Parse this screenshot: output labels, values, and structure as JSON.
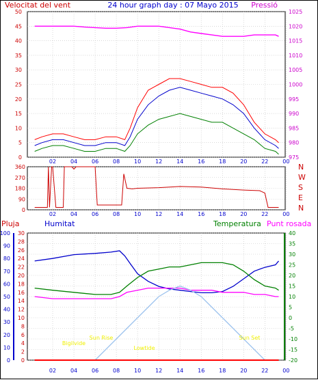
{
  "header": {
    "left": "Velocitat del vent",
    "center": "24 hour graph day : 07 Mayo 2015",
    "right": "Pressió"
  },
  "colors": {
    "red": "#ff0000",
    "dark_red": "#cc0000",
    "blue": "#0000cc",
    "green": "#008000",
    "magenta": "#ff00ff",
    "purple": "#990099",
    "light_blue": "#9dc3ee",
    "yellow": "#f0f000",
    "grid": "#c0c0c0"
  },
  "chart_data": [
    {
      "type": "line",
      "panel": "wind_speed_pressure",
      "title": "24 hour graph day : 07 Mayo 2015",
      "ylabel_left": "Velocitat del vent",
      "ylabel_right": "Pressió",
      "xticks": [
        "02",
        "04",
        "06",
        "08",
        "10",
        "12",
        "14",
        "16",
        "18",
        "20",
        "22",
        "00"
      ],
      "yticks_left": [
        "0",
        "5",
        "10",
        "15",
        "20",
        "25",
        "30",
        "35",
        "40",
        "45",
        "50"
      ],
      "yticks_right": [
        "975",
        "980",
        "985",
        "990",
        "995",
        "1000",
        "1005",
        "1010",
        "1015",
        "1020",
        "1025"
      ],
      "ylim_left": [
        0,
        50
      ],
      "ylim_right": [
        975,
        1025
      ],
      "grid": true,
      "series": [
        {
          "color": "#ff0000",
          "x": [
            0.3,
            1.0,
            2.0,
            3.0,
            4.0,
            5.0,
            6.0,
            7.0,
            8.0,
            8.8,
            9.3,
            10.0,
            11.0,
            12.0,
            13.0,
            14.0,
            15.0,
            16.0,
            17.0,
            18.0,
            19.0,
            20.0,
            21.0,
            22.0,
            23.0,
            23.3
          ],
          "y": [
            6,
            7,
            8,
            8,
            7,
            6,
            6,
            7,
            7,
            6,
            10,
            17,
            23,
            25,
            27,
            27,
            26,
            25,
            24,
            24,
            22,
            18,
            12,
            8,
            6,
            5
          ]
        },
        {
          "color": "#0000cc",
          "x": [
            0.3,
            1.0,
            2.0,
            3.0,
            4.0,
            5.0,
            6.0,
            7.0,
            8.0,
            8.8,
            9.3,
            10.0,
            11.0,
            12.0,
            13.0,
            14.0,
            15.0,
            16.0,
            17.0,
            18.0,
            19.0,
            20.0,
            21.0,
            22.0,
            23.0,
            23.3
          ],
          "y": [
            4,
            5,
            6,
            6,
            5,
            4,
            4,
            5,
            5,
            4,
            7,
            13,
            18,
            21,
            23,
            24,
            23,
            22,
            21,
            20,
            18,
            15,
            10,
            6,
            4,
            3
          ]
        },
        {
          "color": "#008000",
          "x": [
            0.3,
            1.0,
            2.0,
            3.0,
            4.0,
            5.0,
            6.0,
            7.0,
            8.0,
            8.8,
            9.3,
            10.0,
            11.0,
            12.0,
            13.0,
            14.0,
            15.0,
            16.0,
            17.0,
            18.0,
            19.0,
            20.0,
            21.0,
            22.0,
            23.0,
            23.3
          ],
          "y": [
            2,
            3,
            4,
            4,
            3,
            2,
            2,
            3,
            3,
            2,
            4,
            8,
            11,
            13,
            14,
            15,
            14,
            13,
            12,
            12,
            10,
            8,
            6,
            3,
            2,
            1
          ]
        },
        {
          "color": "#ff00ff",
          "axis": "right",
          "x": [
            0.3,
            1.0,
            2.0,
            3.0,
            4.0,
            5.0,
            6.0,
            7.0,
            8.0,
            9.0,
            10.0,
            11.0,
            12.0,
            13.0,
            14.0,
            15.0,
            16.0,
            17.0,
            18.0,
            19.0,
            20.0,
            21.0,
            22.0,
            23.0,
            23.3
          ],
          "y": [
            1020,
            1020,
            1020,
            1020,
            1020,
            1019.7,
            1019.5,
            1019.3,
            1019.3,
            1019.5,
            1020,
            1020,
            1020,
            1019.5,
            1019,
            1018,
            1017.5,
            1017,
            1016.5,
            1016.5,
            1016.5,
            1017,
            1017,
            1017,
            1016.5
          ]
        }
      ]
    },
    {
      "type": "line",
      "panel": "wind_direction",
      "yticks": [
        "0",
        "90",
        "180",
        "270",
        "360"
      ],
      "ylim": [
        0,
        360
      ],
      "direction_labels": [
        "N",
        "W",
        "S",
        "E",
        "N"
      ],
      "grid": true,
      "series": [
        {
          "color": "#cc0000",
          "x": [
            0.3,
            1.5,
            1.6,
            1.7,
            1.9,
            2.0,
            2.3,
            3.0,
            3.1,
            3.8,
            4.0,
            4.2,
            5.0,
            6.0,
            6.2,
            7.0,
            8.0,
            8.5,
            8.7,
            9.0,
            9.5,
            10.0,
            12.0,
            14.0,
            16.0,
            18.0,
            20.0,
            21.5,
            22.0,
            22.3,
            23.3
          ],
          "y": [
            20,
            20,
            360,
            20,
            360,
            360,
            20,
            20,
            360,
            360,
            340,
            360,
            360,
            360,
            40,
            40,
            40,
            40,
            300,
            180,
            175,
            180,
            185,
            195,
            190,
            175,
            165,
            160,
            140,
            20,
            20
          ]
        }
      ]
    },
    {
      "type": "line",
      "panel": "rain_humidity_temperature",
      "ylabel_left_1": "Pluja",
      "ylabel_left_2": "Humitat",
      "ylabel_right_1": "Temperatura",
      "ylabel_right_2": "Punt rosada",
      "yticks_rain": [
        "0",
        "2",
        "4",
        "6",
        "8",
        "10",
        "12",
        "14",
        "16",
        "18",
        "20",
        "22",
        "24",
        "26",
        "28",
        "30"
      ],
      "yticks_humidity": [
        "0",
        "10",
        "20",
        "30",
        "40",
        "50",
        "60",
        "70",
        "80",
        "90",
        "100"
      ],
      "yticks_temp": [
        "-20",
        "-15",
        "-10",
        "-5",
        "0",
        "5",
        "10",
        "15",
        "20",
        "25",
        "30",
        "35",
        "40"
      ],
      "ylim_rain": [
        0,
        30
      ],
      "ylim_humidity": [
        0,
        100
      ],
      "ylim_temp": [
        -20,
        40
      ],
      "grid": true,
      "annotations": [
        "Bigilvide",
        "Sun Rise",
        "Lowtide",
        "Sun Set"
      ],
      "series": [
        {
          "color": "#0000cc",
          "axis": "humidity",
          "x": [
            0.3,
            2.0,
            4.0,
            6.0,
            7.5,
            8.3,
            8.8,
            9.3,
            10.0,
            11.0,
            12.0,
            13.0,
            14.0,
            15.0,
            16.0,
            17.0,
            18.0,
            19.0,
            20.0,
            21.0,
            22.0,
            23.0,
            23.3
          ],
          "y": [
            78,
            80,
            83,
            84,
            85,
            86,
            82,
            76,
            68,
            62,
            58,
            56,
            55,
            54,
            53,
            53,
            54,
            58,
            64,
            70,
            73,
            75,
            78
          ]
        },
        {
          "color": "#008000",
          "axis": "temp",
          "x": [
            0.3,
            2.0,
            4.0,
            6.0,
            7.5,
            8.3,
            9.0,
            10.0,
            11.0,
            12.0,
            13.0,
            14.0,
            15.0,
            16.0,
            17.0,
            18.0,
            19.0,
            20.0,
            21.0,
            22.0,
            23.0,
            23.3
          ],
          "y": [
            14,
            13,
            12,
            11,
            11,
            12,
            15,
            19,
            22,
            23,
            24,
            24,
            25,
            26,
            26,
            26,
            25,
            22,
            18,
            15,
            14,
            13
          ]
        },
        {
          "color": "#ff00ff",
          "axis": "temp",
          "x": [
            0.3,
            2.0,
            4.0,
            6.0,
            7.5,
            8.3,
            9.0,
            10.0,
            11.0,
            12.0,
            13.0,
            14.0,
            15.0,
            16.0,
            17.0,
            18.0,
            19.0,
            20.0,
            21.0,
            22.0,
            23.0,
            23.3
          ],
          "y": [
            10,
            9,
            9,
            9,
            9,
            10,
            12,
            13,
            14,
            14,
            14,
            14,
            13,
            13,
            13,
            12,
            12,
            12,
            11,
            11,
            10,
            10
          ]
        },
        {
          "color": "#9dc3ee",
          "axis": "temp",
          "x": [
            6.0,
            7.0,
            8.0,
            9.0,
            10.0,
            11.0,
            12.0,
            13.0,
            14.0,
            15.0,
            16.0,
            17.0,
            18.0,
            19.0,
            20.0,
            21.0,
            22.0
          ],
          "y": [
            -20,
            -15,
            -10,
            -5,
            0,
            5,
            10,
            13,
            15,
            13,
            10,
            5,
            0,
            -5,
            -10,
            -15,
            -20
          ]
        },
        {
          "color": "#ff0000",
          "axis": "rain",
          "x": [
            0.3,
            23.3
          ],
          "y": [
            0,
            0
          ]
        }
      ]
    }
  ]
}
